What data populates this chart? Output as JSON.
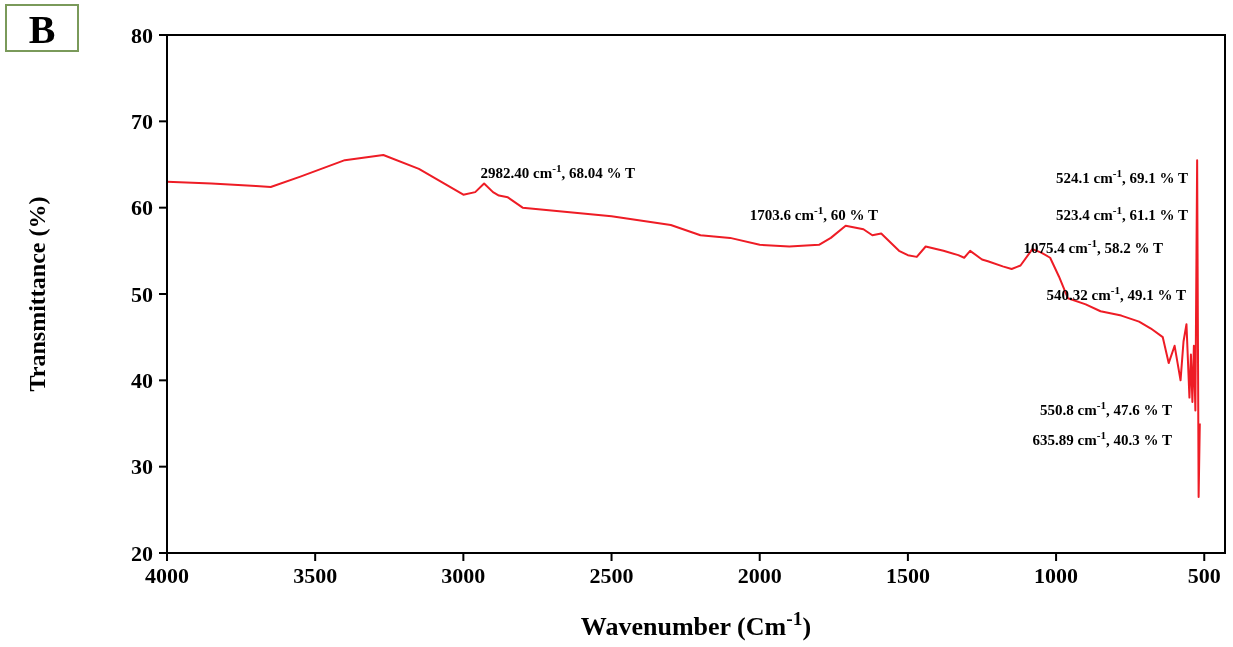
{
  "chart_data": {
    "type": "line",
    "title": "B",
    "xlabel": "Wavenumber (Cm$^{-1}$)",
    "ylabel": "Transmittance (%)",
    "annotations": [
      "2982.40 cm$^{-1}$, 68.04 % T",
      "1703.6 cm$^{-1}$, 60 % T",
      "524.1 cm$^{-1}$, 69.1 % T",
      "523.4 cm$^{-1}$, 61.1 % T",
      "1075.4 cm$^{-1}$, 58.2 % T",
      "540.32 cm$^{-1}$, 49.1 % T",
      "550.8 cm$^{-1}$, 47.6 % T",
      "635.89 cm$^{-1}$, 40.3 % T"
    ],
    "x": [
      4000,
      3850,
      3700,
      3650,
      3550,
      3400,
      3270,
      3150,
      3000,
      2960,
      2930,
      2900,
      2880,
      2850,
      2800,
      2500,
      2300,
      2200,
      2100,
      2000,
      1900,
      1800,
      1760,
      1710,
      1650,
      1620,
      1590,
      1530,
      1500,
      1470,
      1440,
      1380,
      1330,
      1310,
      1290,
      1250,
      1230,
      1180,
      1150,
      1120,
      1080,
      1050,
      1020,
      990,
      960,
      900,
      850,
      780,
      720,
      680,
      640,
      620,
      600,
      580,
      570,
      560,
      550,
      545,
      540,
      535,
      530,
      524,
      519,
      515
    ],
    "series": [
      {
        "color": "#ee1c25",
        "values": [
          63.0,
          62.8,
          62.5,
          62.4,
          63.6,
          65.5,
          66.1,
          64.5,
          61.5,
          61.8,
          62.8,
          61.8,
          61.4,
          61.2,
          60.0,
          59.0,
          58.0,
          56.8,
          56.5,
          55.7,
          55.5,
          55.7,
          56.5,
          57.9,
          57.5,
          56.8,
          57.0,
          55.0,
          54.5,
          54.3,
          55.5,
          55.0,
          54.5,
          54.2,
          55.0,
          54.0,
          53.8,
          53.2,
          52.9,
          53.3,
          55.2,
          54.8,
          54.2,
          52.0,
          49.5,
          48.8,
          48.0,
          47.5,
          46.8,
          46.0,
          45.0,
          42.0,
          44.0,
          40.0,
          44.5,
          46.5,
          38.0,
          43.0,
          37.5,
          44.0,
          36.5,
          65.5,
          26.5,
          35.0
        ]
      }
    ],
    "xlim": [
      4000,
      430
    ],
    "ylim": [
      20,
      80
    ],
    "xticks": [
      4000,
      3500,
      3000,
      2500,
      2000,
      1500,
      1000,
      500
    ],
    "yticks": [
      20,
      30,
      40,
      50,
      60,
      70,
      80
    ],
    "grid": false,
    "marker": "none",
    "line_style": "solid"
  }
}
